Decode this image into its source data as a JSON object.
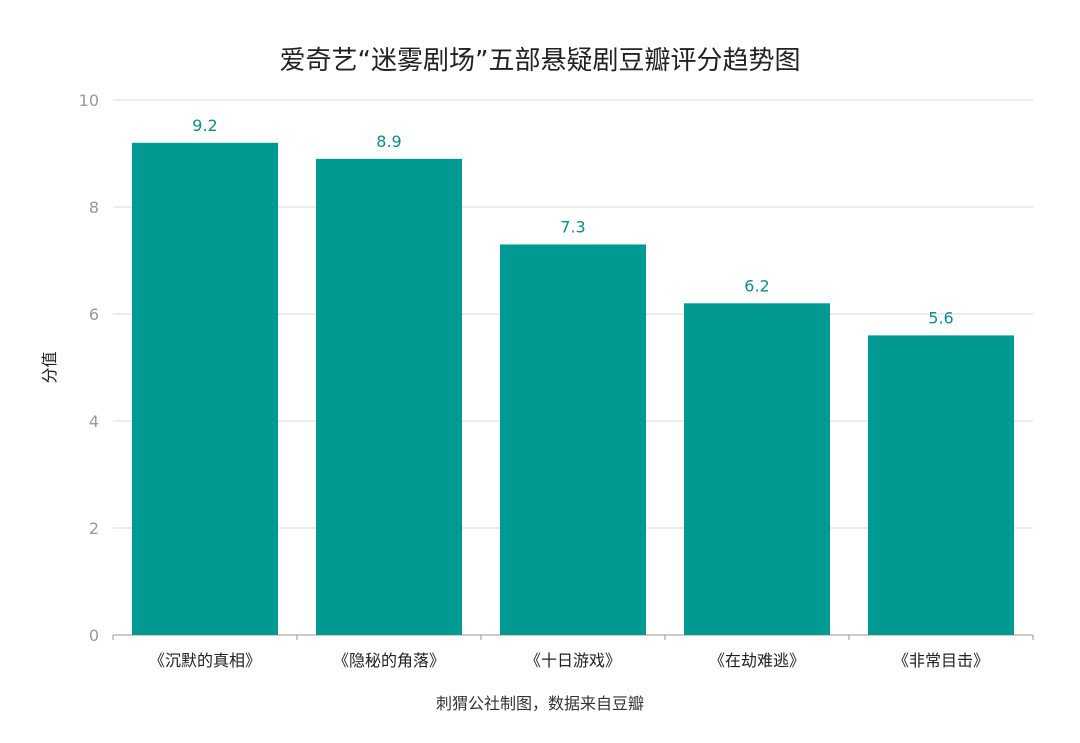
{
  "chart_data": {
    "type": "bar",
    "title": "爱奇艺“迷雾剧场”五部悬疑剧豆瓣评分趋势图",
    "ylabel": "分值",
    "xlabel": "",
    "source": "刺猬公社制图，数据来自豆瓣",
    "categories": [
      "《沉默的真相》",
      "《隐秘的角落》",
      "《十日游戏》",
      "《在劫难逃》",
      "《非常目击》"
    ],
    "values": [
      9.2,
      8.9,
      7.3,
      6.2,
      5.6
    ],
    "value_labels": [
      "9.2",
      "8.9",
      "7.3",
      "6.2",
      "5.6"
    ],
    "ylim": [
      0,
      10
    ],
    "yticks": [
      "0",
      "2",
      "4",
      "6",
      "8",
      "10"
    ],
    "grid": true,
    "bar_color": "#009a93",
    "label_color": "#0c8f87"
  }
}
